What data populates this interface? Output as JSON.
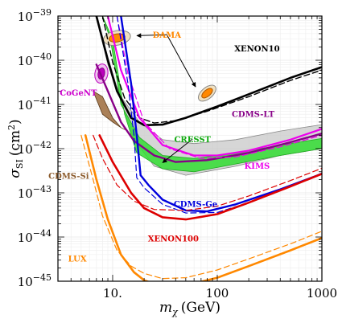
{
  "chart_data": {
    "type": "line",
    "xscale": "log",
    "yscale": "log",
    "xlim": [
      3,
      1000
    ],
    "ylim": [
      1e-45,
      1e-39
    ],
    "grid": true,
    "xlabel": {
      "main": "m",
      "sub": "χ",
      "unit": "(GeV)"
    },
    "ylabel": {
      "main": "σ",
      "sub": "SI",
      "unit": "(cm",
      "sup": "2",
      "close": ")"
    },
    "x_ticks": [
      {
        "value": 10,
        "label": "10."
      },
      {
        "value": 100,
        "label": "100"
      },
      {
        "value": 1000,
        "label": "1000"
      }
    ],
    "y_ticks": [
      {
        "value": 1e-39,
        "label": "10",
        "exp": "−39"
      },
      {
        "value": 1e-40,
        "label": "10",
        "exp": "−40"
      },
      {
        "value": 1e-41,
        "label": "10",
        "exp": "−41"
      },
      {
        "value": 1e-42,
        "label": "10",
        "exp": "−42"
      },
      {
        "value": 1e-43,
        "label": "10",
        "exp": "−43"
      },
      {
        "value": 1e-44,
        "label": "10",
        "exp": "−44"
      },
      {
        "value": 1e-45,
        "label": "10",
        "exp": "−45"
      }
    ],
    "regions": [
      {
        "name": "CRESST-outer",
        "fill": "#c8c8c8",
        "opacity": 0.75,
        "stroke": "#888888",
        "upper": [
          [
            7,
            1e-39
          ],
          [
            9,
            8e-41
          ],
          [
            12,
            1.5e-41
          ],
          [
            18,
            4e-42
          ],
          [
            30,
            1.6e-42
          ],
          [
            60,
            1.3e-42
          ],
          [
            150,
            1.6e-42
          ],
          [
            400,
            2.5e-42
          ],
          [
            1000,
            3.5e-42
          ]
        ],
        "lower": [
          [
            7,
            1e-39
          ],
          [
            9,
            1.2e-40
          ],
          [
            12,
            1.2e-41
          ],
          [
            16,
            1.6e-42
          ],
          [
            25,
            4e-43
          ],
          [
            50,
            2.5e-43
          ],
          [
            150,
            4e-43
          ],
          [
            400,
            7e-43
          ],
          [
            1000,
            1e-42
          ]
        ]
      },
      {
        "name": "CRESST-inner",
        "fill": "#33dd33",
        "opacity": 0.85,
        "stroke": "#22aa22",
        "upper": [
          [
            8,
            1e-39
          ],
          [
            9.5,
            3e-40
          ],
          [
            12,
            1e-41
          ],
          [
            18,
            1.8e-42
          ],
          [
            30,
            7e-43
          ],
          [
            60,
            6e-43
          ],
          [
            150,
            8e-43
          ],
          [
            400,
            1.2e-42
          ],
          [
            1000,
            1.7e-42
          ]
        ],
        "lower": [
          [
            8,
            1e-39
          ],
          [
            10,
            3e-40
          ],
          [
            13,
            6e-42
          ],
          [
            17,
            8e-43
          ],
          [
            30,
            3.5e-43
          ],
          [
            60,
            3e-43
          ],
          [
            150,
            4.5e-43
          ],
          [
            400,
            7e-43
          ],
          [
            1000,
            1e-42
          ]
        ]
      },
      {
        "name": "CDMS-Si",
        "fill": "#9c6b3c",
        "opacity": 0.85,
        "stroke": "#5a3a1a",
        "upper": [
          [
            6.5,
            2e-41
          ],
          [
            8,
            6e-42
          ],
          [
            10,
            4e-42
          ],
          [
            12,
            3e-42
          ],
          [
            14,
            2.5e-42
          ]
        ],
        "lower": [
          [
            6.5,
            2e-41
          ],
          [
            8,
            1.5e-41
          ],
          [
            10,
            5e-42
          ],
          [
            12,
            3e-42
          ],
          [
            14,
            2.5e-42
          ]
        ]
      }
    ],
    "ellipses": [
      {
        "name": "DAMA-1-outer",
        "cx": 11,
        "cy": 3.2e-40,
        "rx": 17,
        "ry": 9,
        "rot": -10,
        "fill": "#f0e0c0",
        "stroke": "#888888"
      },
      {
        "name": "DAMA-1-inner",
        "cx": 11,
        "cy": 3.2e-40,
        "rx": 10,
        "ry": 5,
        "rot": -10,
        "fill": "#ff8800",
        "stroke": "#aa5500"
      },
      {
        "name": "DAMA-2-outer",
        "cx": 80,
        "cy": 1.8e-41,
        "rx": 13,
        "ry": 7,
        "rot": -40,
        "fill": "#f0e0c0",
        "stroke": "#888888"
      },
      {
        "name": "DAMA-2-inner",
        "cx": 80,
        "cy": 1.8e-41,
        "rx": 8,
        "ry": 4,
        "rot": -40,
        "fill": "#ff8800",
        "stroke": "#aa5500"
      },
      {
        "name": "CoGeNT-outer",
        "cx": 7.8,
        "cy": 5e-41,
        "rx": 8,
        "ry": 12,
        "rot": 10,
        "fill": "#f0c0f0",
        "stroke": "#bb00bb"
      },
      {
        "name": "CoGeNT-inner",
        "cx": 7.8,
        "cy": 5e-41,
        "rx": 4,
        "ry": 7,
        "rot": 10,
        "fill": "#bb00bb",
        "stroke": "#880088"
      }
    ],
    "series": [
      {
        "name": "XENON10",
        "color": "#000000",
        "width": 2.6,
        "dash": false,
        "points": [
          [
            7,
            1e-39
          ],
          [
            9,
            1e-40
          ],
          [
            11,
            2e-41
          ],
          [
            15,
            5e-42
          ],
          [
            20,
            3.4e-42
          ],
          [
            30,
            3.5e-42
          ],
          [
            50,
            5e-42
          ],
          [
            100,
            9e-42
          ],
          [
            200,
            1.7e-41
          ],
          [
            500,
            4e-41
          ],
          [
            1000,
            7e-41
          ]
        ]
      },
      {
        "name": "XENON10-dashed",
        "color": "#000000",
        "width": 1.4,
        "dash": true,
        "points": [
          [
            8,
            1e-39
          ],
          [
            10,
            9e-41
          ],
          [
            13,
            1.4e-41
          ],
          [
            18,
            5e-42
          ],
          [
            25,
            3.8e-42
          ],
          [
            40,
            4.3e-42
          ],
          [
            80,
            7e-42
          ],
          [
            200,
            1.5e-41
          ],
          [
            500,
            3.5e-41
          ],
          [
            1000,
            6e-41
          ]
        ]
      },
      {
        "name": "CDMS-LT",
        "color": "#880088",
        "width": 2.4,
        "dash": false,
        "points": [
          [
            7,
            8e-41
          ],
          [
            9,
            2e-41
          ],
          [
            12,
            4e-42
          ],
          [
            16,
            1.5e-42
          ],
          [
            25,
            7e-43
          ],
          [
            40,
            5e-43
          ],
          [
            80,
            5.5e-43
          ],
          [
            200,
            8e-43
          ],
          [
            500,
            1.4e-42
          ],
          [
            1000,
            2.2e-42
          ]
        ]
      },
      {
        "name": "KIMS",
        "color": "#ee00ee",
        "width": 2.2,
        "dash": false,
        "points": [
          [
            9,
            1e-39
          ],
          [
            12,
            6e-41
          ],
          [
            18,
            5e-42
          ],
          [
            30,
            1.2e-42
          ],
          [
            60,
            7e-43
          ],
          [
            100,
            7e-43
          ],
          [
            200,
            9e-43
          ],
          [
            500,
            1.6e-42
          ],
          [
            1000,
            2.8e-42
          ]
        ]
      },
      {
        "name": "KIMS-dashed",
        "color": "#ee00ee",
        "width": 1.2,
        "dash": true,
        "points": [
          [
            11,
            1e-39
          ],
          [
            14,
            5e-41
          ],
          [
            20,
            4e-42
          ],
          [
            35,
            1e-42
          ],
          [
            70,
            6e-43
          ],
          [
            150,
            6.5e-43
          ],
          [
            400,
            1.1e-42
          ],
          [
            1000,
            2e-42
          ]
        ]
      },
      {
        "name": "CDMS-Ge",
        "color": "#0000dd",
        "width": 2.4,
        "dash": false,
        "points": [
          [
            12,
            1e-39
          ],
          [
            15,
            3e-41
          ],
          [
            17,
            2e-42
          ],
          [
            18.5,
            2.5e-43
          ],
          [
            22,
            1.5e-43
          ],
          [
            30,
            7e-44
          ],
          [
            50,
            4e-44
          ],
          [
            80,
            3.8e-44
          ],
          [
            150,
            5.5e-44
          ],
          [
            400,
            1.2e-43
          ],
          [
            1000,
            2.7e-43
          ]
        ]
      },
      {
        "name": "CDMS-Ge-dashed",
        "color": "#0000dd",
        "width": 1.2,
        "dash": true,
        "points": [
          [
            11,
            1e-39
          ],
          [
            14,
            3e-41
          ],
          [
            16,
            2e-42
          ],
          [
            17,
            2.2e-43
          ],
          [
            20,
            1.3e-43
          ],
          [
            30,
            5.5e-44
          ],
          [
            50,
            3.5e-44
          ],
          [
            100,
            3.6e-44
          ],
          [
            200,
            6e-44
          ],
          [
            500,
            1.4e-43
          ],
          [
            1000,
            2.8e-43
          ]
        ]
      },
      {
        "name": "XENON100",
        "color": "#dd0000",
        "width": 2.6,
        "dash": false,
        "points": [
          [
            7.5,
            2e-42
          ],
          [
            10,
            5e-43
          ],
          [
            15,
            1e-43
          ],
          [
            20,
            4.5e-44
          ],
          [
            30,
            2.8e-44
          ],
          [
            50,
            2.5e-44
          ],
          [
            100,
            3.3e-44
          ],
          [
            200,
            6e-44
          ],
          [
            500,
            1.4e-43
          ],
          [
            1000,
            2.7e-43
          ]
        ]
      },
      {
        "name": "XENON100-dashed",
        "color": "#dd0000",
        "width": 1.2,
        "dash": true,
        "points": [
          [
            6.5,
            2e-42
          ],
          [
            8,
            6e-43
          ],
          [
            11,
            1.5e-43
          ],
          [
            16,
            6.5e-44
          ],
          [
            25,
            4.2e-44
          ],
          [
            50,
            4e-44
          ],
          [
            100,
            5e-44
          ],
          [
            200,
            8.5e-44
          ],
          [
            500,
            1.9e-43
          ],
          [
            1000,
            3.6e-43
          ]
        ]
      },
      {
        "name": "LUX",
        "color": "#ff8800",
        "width": 2.6,
        "dash": false,
        "points": [
          [
            5.5,
            2e-42
          ],
          [
            7,
            2e-43
          ],
          [
            9,
            2.5e-44
          ],
          [
            12,
            4e-45
          ],
          [
            16,
            1.6e-45
          ],
          [
            20,
            1.05e-45
          ],
          [
            30,
            7.5e-46
          ],
          [
            50,
            8e-46
          ],
          [
            100,
            1.2e-45
          ],
          [
            200,
            2.2e-45
          ],
          [
            500,
            5e-45
          ],
          [
            1000,
            9.5e-45
          ]
        ]
      },
      {
        "name": "LUX-dashed",
        "color": "#ff8800",
        "width": 1.2,
        "dash": true,
        "points": [
          [
            5,
            2e-42
          ],
          [
            6.5,
            2e-43
          ],
          [
            8,
            3e-44
          ],
          [
            11,
            5e-45
          ],
          [
            15,
            2.2e-45
          ],
          [
            20,
            1.5e-45
          ],
          [
            30,
            1.15e-45
          ],
          [
            50,
            1.2e-45
          ],
          [
            100,
            1.8e-45
          ],
          [
            200,
            3.2e-45
          ],
          [
            500,
            7e-45
          ],
          [
            1000,
            1.35e-44
          ]
        ]
      }
    ],
    "annotations": [
      {
        "text": "DAMA",
        "x": 33,
        "y": 3.2e-40,
        "color": "#ff8800",
        "arrows": [
          [
            17,
            3.6e-40
          ],
          [
            62,
            2.5e-41
          ]
        ]
      },
      {
        "text": "XENON10",
        "x": 240,
        "y": 1.6e-40,
        "color": "#000000",
        "arrows": []
      },
      {
        "text": "CoGeNT",
        "x": 4.7,
        "y": 1.6e-41,
        "color": "#cc00cc",
        "arrows": []
      },
      {
        "text": "CDMS-LT",
        "x": 220,
        "y": 5.2e-42,
        "color": "#880088",
        "arrows": []
      },
      {
        "text": "CRESST",
        "x": 58,
        "y": 1.4e-42,
        "color": "#11aa11",
        "arrows": [
          [
            30,
            4.8e-43
          ]
        ]
      },
      {
        "text": "KIMS",
        "x": 240,
        "y": 3.5e-43,
        "color": "#ee00ee",
        "arrows": []
      },
      {
        "text": "CDMS-Si",
        "x": 3.8,
        "y": 2.1e-43,
        "color": "#8b5a2b",
        "arrows": []
      },
      {
        "text": "CDMS-Ge",
        "x": 62,
        "y": 4.8e-44,
        "color": "#0000dd",
        "arrows": []
      },
      {
        "text": "XENON100",
        "x": 38,
        "y": 8e-45,
        "color": "#dd0000",
        "arrows": []
      },
      {
        "text": "LUX",
        "x": 4.6,
        "y": 2.8e-45,
        "color": "#ff8800",
        "arrows": []
      }
    ]
  }
}
